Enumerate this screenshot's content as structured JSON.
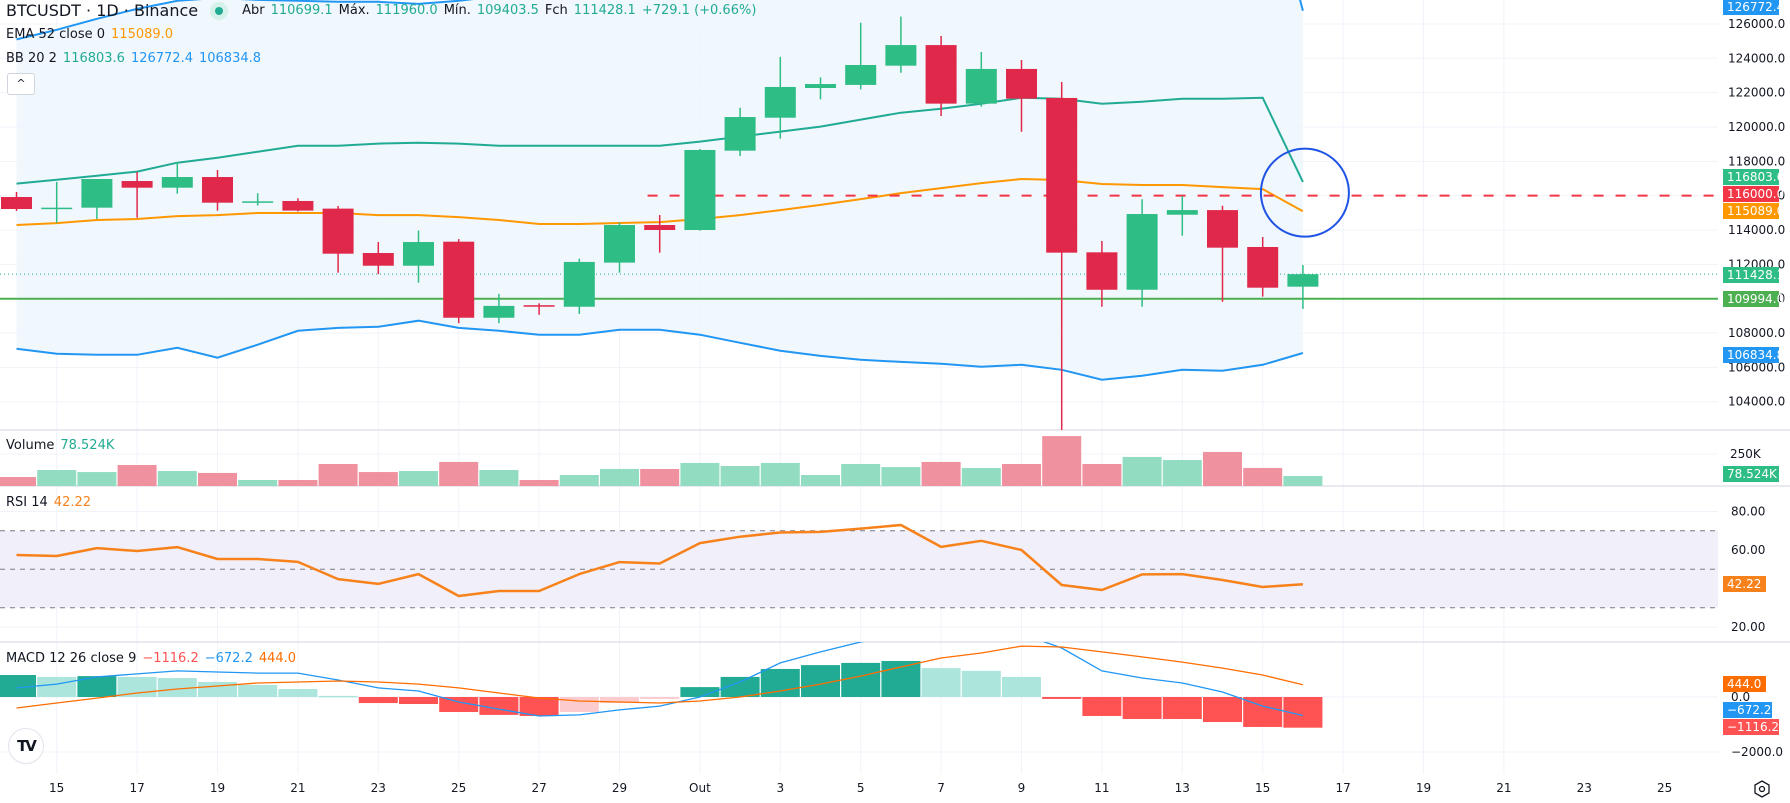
{
  "header": {
    "symbol": "BTCUSDT · 1D · Binance",
    "ohlc": {
      "open_label": "Abr",
      "open": "110699.1",
      "high_label": "Máx.",
      "high": "111960.0",
      "low_label": "Mín.",
      "low": "109403.5",
      "close_label": "Fch",
      "close": "111428.1",
      "change": "+729.1 (+0.66%)"
    }
  },
  "indicators": {
    "ema": {
      "label": "EMA 52 close 0",
      "value": "115089.0"
    },
    "bb": {
      "label": "BB 20 2",
      "basis": "116803.6",
      "upper": "126772.4",
      "lower": "106834.8"
    },
    "volume": {
      "label": "Volume",
      "value": "78.524K"
    },
    "rsi": {
      "label": "RSI 14",
      "value": "42.22"
    },
    "macd": {
      "label": "MACD 12 26 close 9",
      "hist": "−1116.2",
      "macd": "−672.2",
      "signal": "444.0"
    }
  },
  "controls": {
    "collapse_glyph": "^",
    "logo_text": "TV"
  },
  "colors": {
    "up": "#2ebd85",
    "down": "#e0294a",
    "vol_up": "#92dcc1",
    "vol_down": "#ef919f",
    "bb_band": "#2196f3",
    "bb_basis": "#22ab94",
    "bb_fill": "#eef6fd",
    "ema": "#ff9800",
    "rsi": "#f7821b",
    "rsi_band": "#f1eff9",
    "macd_line": "#2196f3",
    "signal_line": "#ff6d00",
    "hist_up_strong": "#22ab94",
    "hist_up_weak": "#ace5dc",
    "hist_down_strong": "#ff5252",
    "hist_down_weak": "#fccbcd",
    "hline_dashed": "#f23645",
    "hline_solid": "#4caf50",
    "circle": "#1e53e5"
  },
  "chart_data": {
    "type": "candlestick",
    "title": "BTCUSDT · 1D · Binance",
    "x_ticks": [
      "15",
      "17",
      "19",
      "21",
      "23",
      "25",
      "27",
      "29",
      "Out",
      "3",
      "5",
      "7",
      "9",
      "11",
      "13",
      "15",
      "17",
      "19",
      "21",
      "23",
      "25"
    ],
    "dates": [
      "Sep 14",
      "Sep 15",
      "Sep 16",
      "Sep 17",
      "Sep 18",
      "Sep 19",
      "Sep 20",
      "Sep 21",
      "Sep 22",
      "Sep 23",
      "Sep 24",
      "Sep 25",
      "Sep 26",
      "Sep 27",
      "Sep 28",
      "Sep 29",
      "Sep 30",
      "Oct 1",
      "Oct 2",
      "Oct 3",
      "Oct 4",
      "Oct 5",
      "Oct 6",
      "Oct 7",
      "Oct 8",
      "Oct 9",
      "Oct 10",
      "Oct 11",
      "Oct 12",
      "Oct 13",
      "Oct 14",
      "Oct 15",
      "Oct 16"
    ],
    "open": [
      115922,
      115223,
      115300,
      116853,
      116464,
      117086,
      115590,
      115690,
      115245,
      112660,
      111920,
      113320,
      108890,
      109620,
      109530,
      112100,
      114290,
      114000,
      118620,
      120540,
      122270,
      122450,
      123570,
      124770,
      121360,
      123380,
      121690,
      112700,
      110520,
      114890,
      115160,
      113010,
      110699.1
    ],
    "high": [
      116213,
      116800,
      116950,
      117378,
      117960,
      117494,
      116140,
      115850,
      115400,
      113300,
      113970,
      113470,
      110280,
      109730,
      112330,
      114430,
      114870,
      118720,
      121120,
      124080,
      122890,
      126070,
      126430,
      125300,
      124370,
      123900,
      122620,
      113360,
      115790,
      115980,
      115410,
      113590,
      111960.0
    ],
    "low": [
      115107,
      114420,
      114640,
      114716,
      116114,
      115127,
      115425,
      115080,
      111513,
      111430,
      110930,
      108570,
      108570,
      109060,
      109110,
      111510,
      112680,
      113960,
      118310,
      119320,
      121610,
      122190,
      123160,
      120640,
      121180,
      119720,
      102000,
      109530,
      109530,
      113670,
      109820,
      110120,
      109403.5
    ],
    "close": [
      115223,
      115300,
      116970,
      116464,
      117086,
      115590,
      115670,
      115130,
      112620,
      111920,
      113300,
      108890,
      109580,
      109570,
      112140,
      114290,
      114000,
      118660,
      120580,
      122330,
      122500,
      123610,
      124770,
      121360,
      123380,
      121650,
      112680,
      110520,
      114930,
      115160,
      112970,
      110640,
      111428.1
    ],
    "bb_upper": [
      125100,
      125660,
      126300,
      126880,
      127350,
      127520,
      127400,
      127350,
      127290,
      127290,
      127170,
      127350,
      127630,
      127630,
      127630,
      127630,
      127600,
      128220,
      129270,
      130260,
      131300,
      132690,
      134030,
      134490,
      135250,
      135830,
      135890,
      135890,
      135890,
      135890,
      135890,
      135720,
      126772.4
    ],
    "bb_basis": [
      116700,
      116930,
      117160,
      117400,
      117920,
      118210,
      118560,
      118910,
      118910,
      119030,
      119080,
      119030,
      118910,
      118910,
      118910,
      118910,
      118910,
      119150,
      119440,
      119730,
      120020,
      120430,
      120830,
      121060,
      121350,
      121700,
      121640,
      121350,
      121470,
      121640,
      121640,
      121700,
      116803.6
    ],
    "bb_lower": [
      107080,
      106790,
      106730,
      106730,
      107140,
      106560,
      107320,
      108130,
      108300,
      108360,
      108720,
      108300,
      108130,
      107900,
      107900,
      108190,
      108190,
      107900,
      107430,
      106970,
      106670,
      106440,
      106320,
      106210,
      106030,
      106150,
      105860,
      105280,
      105510,
      105860,
      105800,
      106150,
      106834.8
    ],
    "ema52": [
      114290,
      114400,
      114580,
      114640,
      114810,
      114870,
      114990,
      114990,
      114990,
      114870,
      114870,
      114750,
      114580,
      114350,
      114350,
      114410,
      114460,
      114640,
      114870,
      115160,
      115460,
      115800,
      116150,
      116440,
      116730,
      116970,
      116910,
      116680,
      116620,
      116620,
      116500,
      116380,
      115089.0
    ],
    "volume_k": [
      70,
      125,
      109,
      164,
      117,
      102,
      47,
      47,
      172,
      109,
      117,
      188,
      125,
      47,
      86,
      133,
      133,
      180,
      156,
      180,
      86,
      172,
      148,
      188,
      141,
      172,
      390,
      172,
      227,
      203,
      266,
      141,
      78.524
    ],
    "volume_dir": [
      "d",
      "u",
      "u",
      "d",
      "u",
      "d",
      "u",
      "d",
      "d",
      "d",
      "u",
      "d",
      "u",
      "d",
      "u",
      "u",
      "d",
      "u",
      "u",
      "u",
      "u",
      "u",
      "u",
      "d",
      "u",
      "d",
      "d",
      "d",
      "u",
      "u",
      "d",
      "d",
      "u"
    ],
    "rsi": [
      57.4,
      56.9,
      61.0,
      59.5,
      61.5,
      55.3,
      55.3,
      53.8,
      44.9,
      42.4,
      47.5,
      36.1,
      38.7,
      38.7,
      47.5,
      53.7,
      53.0,
      63.6,
      66.9,
      69.1,
      69.4,
      71.1,
      73.0,
      61.6,
      64.8,
      60.0,
      41.8,
      39.2,
      47.3,
      47.5,
      44.4,
      40.8,
      42.22
    ],
    "macd_hist": [
      800,
      730,
      760,
      730,
      690,
      545,
      440,
      290,
      40,
      -220,
      -255,
      -545,
      -650,
      -690,
      -545,
      -220,
      -70,
      360,
      730,
      1020,
      1160,
      1240,
      1310,
      1050,
      950,
      730,
      -70,
      -690,
      -800,
      -800,
      -910,
      -1090,
      -1116.2
    ],
    "macd_line": [
      330,
      470,
      730,
      840,
      950,
      910,
      870,
      870,
      620,
      330,
      220,
      -180,
      -440,
      -690,
      -650,
      -470,
      -330,
      0,
      545,
      1240,
      1640,
      2000,
      2300,
      2400,
      2400,
      2300,
      1780,
      950,
      690,
      510,
      180,
      -330,
      -672.2
    ],
    "signal_line": [
      -400,
      -220,
      -40,
      145,
      290,
      400,
      510,
      545,
      580,
      545,
      470,
      330,
      145,
      -35,
      -145,
      -180,
      -220,
      -145,
      0,
      220,
      470,
      760,
      1090,
      1420,
      1600,
      1850,
      1820,
      1640,
      1460,
      1270,
      1050,
      800,
      444.0
    ],
    "price_axis": {
      "ticks": [
        104000,
        106000,
        108000,
        110000,
        112000,
        114000,
        116000,
        118000,
        120000,
        122000,
        124000,
        126000
      ],
      "labels": [
        "104000.0",
        "106000.0",
        "108000.0",
        "110000.0",
        "112000.0",
        "114000.0",
        "116000.0",
        "118000.0",
        "120000.0",
        "122000.0",
        "124000.0",
        "126000.0"
      ]
    },
    "volume_axis": {
      "ticks": [
        "250K"
      ]
    },
    "rsi_axis": {
      "ticks": [
        "20.00",
        "60.00",
        "80.00"
      ],
      "bands": [
        30,
        50,
        70
      ]
    },
    "macd_axis": {
      "ticks": [
        "0.0",
        "−2000.0"
      ]
    },
    "horizontal_lines": [
      {
        "price": 116000.0,
        "label": "116000.0",
        "style": "dashed",
        "color": "#f23645"
      },
      {
        "price": 109994.0,
        "label": "109994.0",
        "style": "solid",
        "color": "#4caf50"
      },
      {
        "price": 111428.1,
        "label": "111428.1",
        "style": "dotted",
        "color": "#22ab94"
      }
    ],
    "price_badges": [
      {
        "value": 126772.4,
        "label": "126772.4",
        "color": "#2196f3"
      },
      {
        "value": 116803.6,
        "label": "116803.6",
        "color": "#2ebd85"
      },
      {
        "value": 116000.0,
        "label": "116000.0",
        "color": "#f23645"
      },
      {
        "value": 115089.0,
        "label": "115089.0",
        "color": "#ff9800"
      },
      {
        "value": 111428.1,
        "label": "111428.1",
        "color": "#2ebd85"
      },
      {
        "value": 109994.0,
        "label": "109994.0",
        "color": "#4caf50"
      },
      {
        "value": 106834.8,
        "label": "106834.8",
        "color": "#2196f3"
      }
    ],
    "volume_badge": {
      "label": "78.524K",
      "color": "#2ebd85"
    },
    "rsi_badge": {
      "label": "42.22",
      "color": "#f7821b"
    },
    "macd_badges": [
      {
        "label": "444.0",
        "color": "#ff6d00"
      },
      {
        "label": "−672.2",
        "color": "#2196f3"
      },
      {
        "label": "−1116.2",
        "color": "#ff5252"
      }
    ],
    "annotation": {
      "type": "circle",
      "date_index": 32,
      "price": 116000,
      "radius_px": 44
    }
  }
}
